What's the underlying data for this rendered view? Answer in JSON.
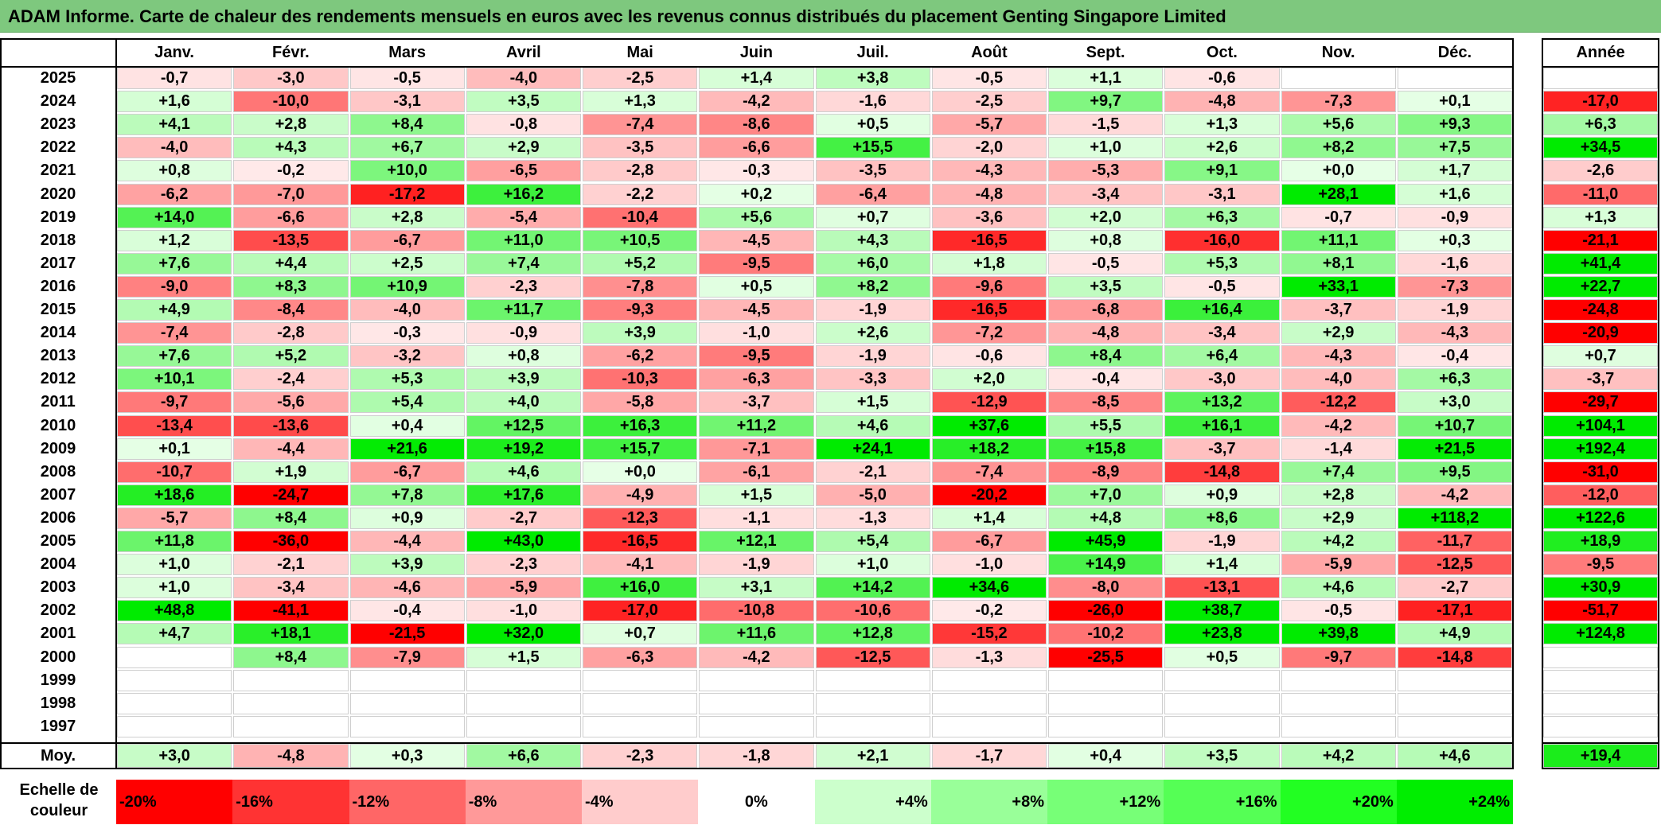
{
  "title": "ADAM Informe. Carte de chaleur des rendements mensuels en euros avec les revenus connus distribués du placement Genting Singapore Limited",
  "chart_data": {
    "type": "heatmap",
    "months": [
      "Janv.",
      "Févr.",
      "Mars",
      "Avril",
      "Mai",
      "Juin",
      "Juil.",
      "Août",
      "Sept.",
      "Oct.",
      "Nov.",
      "Déc."
    ],
    "year_header": "Année",
    "rows": [
      {
        "year": "2025",
        "values": [
          -0.7,
          -3.0,
          -0.5,
          -4.0,
          -2.5,
          1.4,
          3.8,
          -0.5,
          1.1,
          -0.6,
          null,
          null
        ],
        "annual": null
      },
      {
        "year": "2024",
        "values": [
          1.6,
          -10.0,
          -3.1,
          3.5,
          1.3,
          -4.2,
          -1.6,
          -2.5,
          9.7,
          -4.8,
          -7.3,
          0.1
        ],
        "annual": -17.0
      },
      {
        "year": "2023",
        "values": [
          4.1,
          2.8,
          8.4,
          -0.8,
          -7.4,
          -8.6,
          0.5,
          -5.7,
          -1.5,
          1.3,
          5.6,
          9.3
        ],
        "annual": 6.3
      },
      {
        "year": "2022",
        "values": [
          -4.0,
          4.3,
          6.7,
          2.9,
          -3.5,
          -6.6,
          15.5,
          -2.0,
          1.0,
          2.6,
          8.2,
          7.5
        ],
        "annual": 34.5
      },
      {
        "year": "2021",
        "values": [
          0.8,
          -0.2,
          10.0,
          -6.5,
          -2.8,
          -0.3,
          -3.5,
          -4.3,
          -5.3,
          9.1,
          0.0,
          1.7
        ],
        "annual": -2.6
      },
      {
        "year": "2020",
        "values": [
          -6.2,
          -7.0,
          -17.2,
          16.2,
          -2.2,
          0.2,
          -6.4,
          -4.8,
          -3.4,
          -3.1,
          28.1,
          1.6
        ],
        "annual": -11.0
      },
      {
        "year": "2019",
        "values": [
          14.0,
          -6.6,
          2.8,
          -5.4,
          -10.4,
          5.6,
          0.7,
          -3.6,
          2.0,
          6.3,
          -0.7,
          -0.9
        ],
        "annual": 1.3
      },
      {
        "year": "2018",
        "values": [
          1.2,
          -13.5,
          -6.7,
          11.0,
          10.5,
          -4.5,
          4.3,
          -16.5,
          0.8,
          -16.0,
          11.1,
          0.3
        ],
        "annual": -21.1
      },
      {
        "year": "2017",
        "values": [
          7.6,
          4.4,
          2.5,
          7.4,
          5.2,
          -9.5,
          6.0,
          1.8,
          -0.5,
          5.3,
          8.1,
          -1.6
        ],
        "annual": 41.4
      },
      {
        "year": "2016",
        "values": [
          -9.0,
          8.3,
          10.9,
          -2.3,
          -7.8,
          0.5,
          8.2,
          -9.6,
          3.5,
          -0.5,
          33.1,
          -7.3
        ],
        "annual": 22.7
      },
      {
        "year": "2015",
        "values": [
          4.9,
          -8.4,
          -4.0,
          11.7,
          -9.3,
          -4.5,
          -1.9,
          -16.5,
          -6.8,
          16.4,
          -3.7,
          -1.9
        ],
        "annual": -24.8
      },
      {
        "year": "2014",
        "values": [
          -7.4,
          -2.8,
          -0.3,
          -0.9,
          3.9,
          -1.0,
          2.6,
          -7.2,
          -4.8,
          -3.4,
          2.9,
          -4.3
        ],
        "annual": -20.9
      },
      {
        "year": "2013",
        "values": [
          7.6,
          5.2,
          -3.2,
          0.8,
          -6.2,
          -9.5,
          -1.9,
          -0.6,
          8.4,
          6.4,
          -4.3,
          -0.4
        ],
        "annual": 0.7
      },
      {
        "year": "2012",
        "values": [
          10.1,
          -2.4,
          5.3,
          3.9,
          -10.3,
          -6.3,
          -3.3,
          2.0,
          -0.4,
          -3.0,
          -4.0,
          6.3
        ],
        "annual": -3.7
      },
      {
        "year": "2011",
        "values": [
          -9.7,
          -5.6,
          5.4,
          4.0,
          -5.8,
          -3.7,
          1.5,
          -12.9,
          -8.5,
          13.2,
          -12.2,
          3.0
        ],
        "annual": -29.7
      },
      {
        "year": "2010",
        "values": [
          -13.4,
          -13.6,
          0.4,
          12.5,
          16.3,
          11.2,
          4.6,
          37.6,
          5.5,
          16.1,
          -4.2,
          10.7
        ],
        "annual": 104.1
      },
      {
        "year": "2009",
        "values": [
          0.1,
          -4.4,
          21.6,
          19.2,
          15.7,
          -7.1,
          24.1,
          18.2,
          15.8,
          -3.7,
          -1.4,
          21.5
        ],
        "annual": 192.4
      },
      {
        "year": "2008",
        "values": [
          -10.7,
          1.9,
          -6.7,
          4.6,
          0.0,
          -6.1,
          -2.1,
          -7.4,
          -8.9,
          -14.8,
          7.4,
          9.5
        ],
        "annual": -31.0
      },
      {
        "year": "2007",
        "values": [
          18.6,
          -24.7,
          7.8,
          17.6,
          -4.9,
          1.5,
          -5.0,
          -20.2,
          7.0,
          0.9,
          2.8,
          -4.2
        ],
        "annual": -12.0
      },
      {
        "year": "2006",
        "values": [
          -5.7,
          8.4,
          0.9,
          -2.7,
          -12.3,
          -1.1,
          -1.3,
          1.4,
          4.8,
          8.6,
          2.9,
          118.2
        ],
        "annual": 122.6
      },
      {
        "year": "2005",
        "values": [
          11.8,
          -36.0,
          -4.4,
          43.0,
          -16.5,
          12.1,
          5.4,
          -6.7,
          45.9,
          -1.9,
          4.2,
          -11.7
        ],
        "annual": 18.9
      },
      {
        "year": "2004",
        "values": [
          1.0,
          -2.1,
          3.9,
          -2.3,
          -4.1,
          -1.9,
          1.0,
          -1.0,
          14.9,
          1.4,
          -5.9,
          -12.5
        ],
        "annual": -9.5
      },
      {
        "year": "2003",
        "values": [
          1.0,
          -3.4,
          -4.6,
          -5.9,
          16.0,
          3.1,
          14.2,
          34.6,
          -8.0,
          -13.1,
          4.6,
          -2.7
        ],
        "annual": 30.9
      },
      {
        "year": "2002",
        "values": [
          48.8,
          -41.1,
          -0.4,
          -1.0,
          -17.0,
          -10.8,
          -10.6,
          -0.2,
          -26.0,
          38.7,
          -0.5,
          -17.1
        ],
        "annual": -51.7
      },
      {
        "year": "2001",
        "values": [
          4.7,
          18.1,
          -21.5,
          32.0,
          0.7,
          11.6,
          12.8,
          -15.2,
          -10.2,
          23.8,
          39.8,
          4.9
        ],
        "annual": 124.8
      },
      {
        "year": "2000",
        "values": [
          null,
          8.4,
          -7.9,
          1.5,
          -6.3,
          -4.2,
          -12.5,
          -1.3,
          -25.5,
          0.5,
          -9.7,
          -14.8
        ],
        "annual": null
      },
      {
        "year": "1999",
        "values": [
          null,
          null,
          null,
          null,
          null,
          null,
          null,
          null,
          null,
          null,
          null,
          null
        ],
        "annual": null
      },
      {
        "year": "1998",
        "values": [
          null,
          null,
          null,
          null,
          null,
          null,
          null,
          null,
          null,
          null,
          null,
          null
        ],
        "annual": null
      },
      {
        "year": "1997",
        "values": [
          null,
          null,
          null,
          null,
          null,
          null,
          null,
          null,
          null,
          null,
          null,
          null
        ],
        "annual": null
      }
    ],
    "average": {
      "label": "Moy.",
      "values": [
        3.0,
        -4.8,
        0.3,
        6.6,
        -2.3,
        -1.8,
        2.1,
        -1.7,
        0.4,
        3.5,
        4.2,
        4.6
      ],
      "annual": 19.4
    },
    "color_scale": {
      "label": "Echelle de couleur",
      "steps": [
        {
          "label": "-20%",
          "color": "#ff0000"
        },
        {
          "label": "-16%",
          "color": "#ff3333"
        },
        {
          "label": "-12%",
          "color": "#ff6666"
        },
        {
          "label": "-8%",
          "color": "#ff9999"
        },
        {
          "label": "-4%",
          "color": "#ffcccc"
        },
        {
          "label": "0%",
          "color": "#ffffff"
        },
        {
          "label": "+4%",
          "color": "#ccffcc"
        },
        {
          "label": "+8%",
          "color": "#99ff99"
        },
        {
          "label": "+12%",
          "color": "#77ff77"
        },
        {
          "label": "+16%",
          "color": "#55ff55"
        },
        {
          "label": "+20%",
          "color": "#22ff22"
        },
        {
          "label": "+24%",
          "color": "#00ee00"
        }
      ]
    }
  }
}
